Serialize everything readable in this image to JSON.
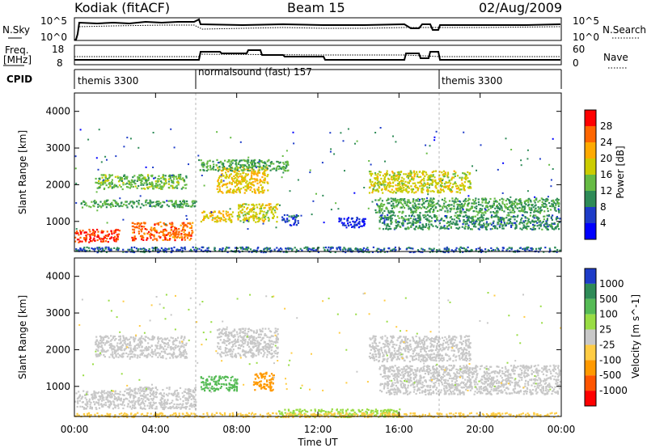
{
  "header": {
    "station": "Kodiak (fitACF)",
    "beam": "Beam 15",
    "date": "02/Aug/2009"
  },
  "sky_panel": {
    "left_label": "N.Sky",
    "right_label": "N.Search",
    "left_ticks": [
      "10^5",
      "10^0"
    ],
    "right_ticks": [
      "10^5",
      "10^0"
    ]
  },
  "freq_panel": {
    "left_label_1": "Freq.",
    "left_label_2": "[MHz]",
    "right_label": "Nave",
    "left_ticks": [
      "18",
      "8"
    ],
    "right_ticks": [
      "60",
      "0"
    ]
  },
  "cpid": {
    "label": "CPID",
    "modes": [
      {
        "name": "themis 3300",
        "start_hour": 0.0
      },
      {
        "name": "normalsound (fast) 157",
        "start_hour": 6.0
      },
      {
        "name": "themis 3300",
        "start_hour": 18.0
      }
    ]
  },
  "axes": {
    "ylabel": "Slant Range [km]",
    "xlabel": "Time UT",
    "x_ticks": [
      "00:00",
      "04:00",
      "08:00",
      "12:00",
      "16:00",
      "20:00",
      "00:00"
    ],
    "y_ticks": [
      "1000",
      "2000",
      "3000",
      "4000"
    ]
  },
  "power_scale": {
    "label": "Power [dB]",
    "ticks": [
      "4",
      "8",
      "12",
      "16",
      "20",
      "24",
      "28"
    ],
    "colors": [
      "#0000ff",
      "#1e3cc8",
      "#2e8b57",
      "#66bb44",
      "#cccc00",
      "#ffaa00",
      "#ff6600",
      "#ff0000"
    ]
  },
  "velocity_scale": {
    "label": "Velocity [m s^-1]",
    "ticks": [
      "1000",
      "500",
      "100",
      "25",
      "-25",
      "-100",
      "-500",
      "-1000"
    ],
    "colors": [
      "#1e3cc8",
      "#2e8b57",
      "#55bb55",
      "#99dd44",
      "#c8c8c8",
      "#ffcc44",
      "#ff9900",
      "#ff5500",
      "#ff0000"
    ]
  },
  "chart_data": {
    "type": "heatmap",
    "x_range_hours": [
      0,
      24
    ],
    "y_range_km": [
      180,
      4500
    ],
    "power_regions": [
      {
        "t0": 0.0,
        "t1": 2.2,
        "r0": 450,
        "r1": 800,
        "power_db": 28
      },
      {
        "t0": 2.8,
        "t1": 5.8,
        "r0": 500,
        "r1": 1000,
        "power_db": 26
      },
      {
        "t0": 0.3,
        "t1": 6.0,
        "r0": 1400,
        "r1": 1600,
        "power_db": 12
      },
      {
        "t0": 1.0,
        "t1": 5.5,
        "r0": 1900,
        "r1": 2300,
        "power_db": 14
      },
      {
        "t0": 6.2,
        "t1": 7.8,
        "r0": 1000,
        "r1": 1300,
        "power_db": 20
      },
      {
        "t0": 8.0,
        "t1": 10.0,
        "r0": 1000,
        "r1": 1500,
        "power_db": 18
      },
      {
        "t0": 7.0,
        "t1": 9.5,
        "r0": 1800,
        "r1": 2500,
        "power_db": 20
      },
      {
        "t0": 6.1,
        "t1": 10.5,
        "r0": 2400,
        "r1": 2700,
        "power_db": 12
      },
      {
        "t0": 14.5,
        "t1": 19.5,
        "r0": 1800,
        "r1": 2400,
        "power_db": 18
      },
      {
        "t0": 14.8,
        "t1": 23.9,
        "r0": 1250,
        "r1": 1650,
        "power_db": 12
      },
      {
        "t0": 15.0,
        "t1": 23.9,
        "r0": 800,
        "r1": 1200,
        "power_db": 10
      },
      {
        "t0": 0.0,
        "t1": 23.9,
        "r0": 180,
        "r1": 320,
        "power_db": 8
      },
      {
        "t0": 10.2,
        "t1": 11.0,
        "r0": 900,
        "r1": 1200,
        "power_db": 6
      },
      {
        "t0": 13.0,
        "t1": 14.3,
        "r0": 850,
        "r1": 1150,
        "power_db": 4
      }
    ],
    "velocity_regions": [
      {
        "t0": 0.0,
        "t1": 2.5,
        "r0": 400,
        "r1": 900,
        "velocity": 0
      },
      {
        "t0": 2.5,
        "t1": 6.0,
        "r0": 400,
        "r1": 1000,
        "velocity": 0
      },
      {
        "t0": 1.0,
        "t1": 5.5,
        "r0": 1800,
        "r1": 2400,
        "velocity": 0
      },
      {
        "t0": 6.2,
        "t1": 8.0,
        "r0": 900,
        "r1": 1300,
        "velocity": 120
      },
      {
        "t0": 8.8,
        "t1": 9.8,
        "r0": 900,
        "r1": 1400,
        "velocity": -300
      },
      {
        "t0": 7.0,
        "t1": 10.0,
        "r0": 1800,
        "r1": 2600,
        "velocity": 0
      },
      {
        "t0": 14.5,
        "t1": 19.5,
        "r0": 1700,
        "r1": 2400,
        "velocity": 0
      },
      {
        "t0": 15.0,
        "t1": 23.9,
        "r0": 800,
        "r1": 1600,
        "velocity": 0
      },
      {
        "t0": 10.0,
        "t1": 16.0,
        "r0": 180,
        "r1": 400,
        "velocity": 60
      },
      {
        "t0": 0.0,
        "t1": 23.9,
        "r0": 180,
        "r1": 300,
        "velocity": -80
      }
    ]
  }
}
